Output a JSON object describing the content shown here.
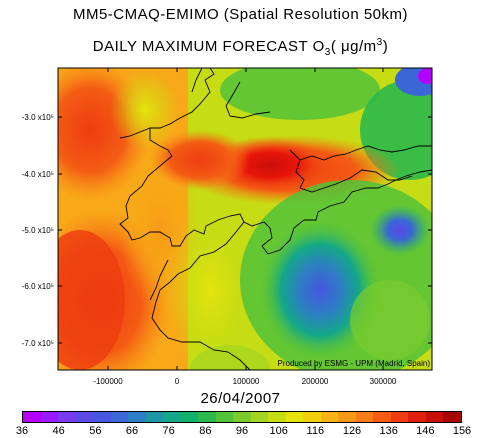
{
  "title": {
    "line1": "MM5-CMAQ-EMIMO (Spatial Resolution 50km)",
    "line2_prefix": "DAILY MAXIMUM  FORECAST  O",
    "line2_sub": "3",
    "line2_unit_open": "( μg/m",
    "line2_sup": "3",
    "line2_unit_close": ")"
  },
  "axes": {
    "y_ticks": [
      "-3.0 x10⁵",
      "-4.0 x10⁵",
      "-5.0 x10⁵",
      "-6.0 x10⁵",
      "-7.0 x10⁵"
    ],
    "x_ticks": [
      "-100000",
      "0",
      "100000",
      "200000",
      "300000"
    ]
  },
  "credit": "Produced by ESMG - UPM (Madrid, Spain)",
  "date": "26/04/2007",
  "colorbar": {
    "labels": [
      "36",
      "46",
      "56",
      "66",
      "76",
      "86",
      "96",
      "106",
      "116",
      "126",
      "136",
      "146",
      "156"
    ],
    "colors": [
      "#b400ff",
      "#9a1aff",
      "#7a3af0",
      "#5a4ae8",
      "#4656e0",
      "#3a66d6",
      "#2d7ec4",
      "#1f96a6",
      "#14a888",
      "#12b06a",
      "#2ab84a",
      "#52c238",
      "#7acc2c",
      "#a2d420",
      "#c6dc14",
      "#e4e40c",
      "#f2d010",
      "#f6b414",
      "#f89818",
      "#f87c18",
      "#f45c14",
      "#ee3c10",
      "#e0200c",
      "#c81008",
      "#a80604"
    ]
  },
  "colors": {
    "hot": "#e8140a",
    "warm": "#f8a818",
    "mid": "#e4e40c",
    "cool": "#2ab84a",
    "cold": "#4656e0"
  }
}
